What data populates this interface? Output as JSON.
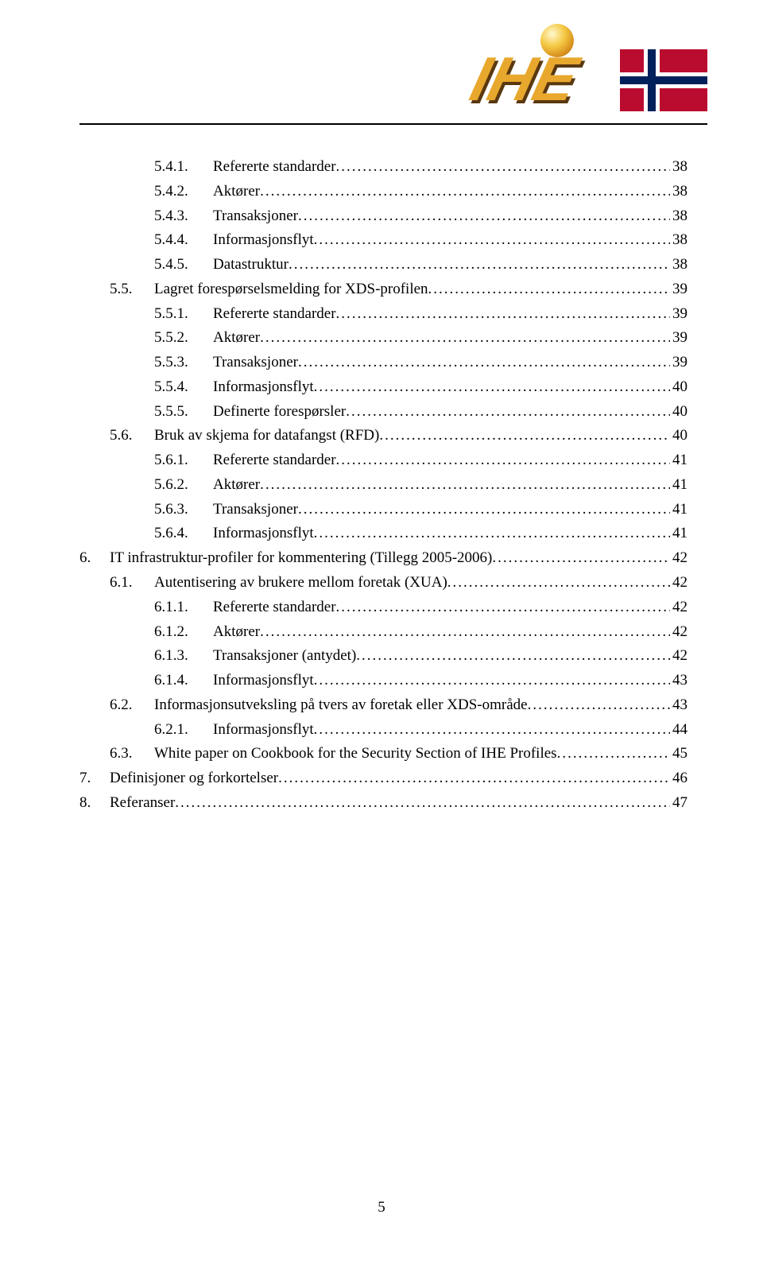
{
  "logo": {
    "text": "IHE",
    "text_color": "#e8a82e",
    "shadow_color": "#5a3810"
  },
  "toc": [
    {
      "level": 2,
      "num": "5.4.1.",
      "title": "Refererte standarder",
      "page": "38"
    },
    {
      "level": 2,
      "num": "5.4.2.",
      "title": "Aktører",
      "page": "38"
    },
    {
      "level": 2,
      "num": "5.4.3.",
      "title": "Transaksjoner",
      "page": "38"
    },
    {
      "level": 2,
      "num": "5.4.4.",
      "title": "Informasjonsflyt",
      "page": "38"
    },
    {
      "level": 2,
      "num": "5.4.5.",
      "title": "Datastruktur",
      "page": "38"
    },
    {
      "level": 1,
      "num": "5.5.",
      "title": "Lagret forespørselsmelding for XDS-profilen",
      "page": "39"
    },
    {
      "level": 2,
      "num": "5.5.1.",
      "title": "Refererte standarder",
      "page": "39"
    },
    {
      "level": 2,
      "num": "5.5.2.",
      "title": "Aktører",
      "page": "39"
    },
    {
      "level": 2,
      "num": "5.5.3.",
      "title": "Transaksjoner",
      "page": "39"
    },
    {
      "level": 2,
      "num": "5.5.4.",
      "title": "Informasjonsflyt",
      "page": "40"
    },
    {
      "level": 2,
      "num": "5.5.5.",
      "title": "Definerte forespørsler",
      "page": "40"
    },
    {
      "level": 1,
      "num": "5.6.",
      "title": "Bruk av skjema for datafangst (RFD)",
      "page": "40"
    },
    {
      "level": 2,
      "num": "5.6.1.",
      "title": "Refererte standarder",
      "page": "41"
    },
    {
      "level": 2,
      "num": "5.6.2.",
      "title": "Aktører",
      "page": "41"
    },
    {
      "level": 2,
      "num": "5.6.3.",
      "title": "Transaksjoner",
      "page": "41"
    },
    {
      "level": 2,
      "num": "5.6.4.",
      "title": "Informasjonsflyt",
      "page": "41"
    },
    {
      "level": 0,
      "num": "6.",
      "title": "IT infrastruktur-profiler for kommentering (Tillegg 2005-2006)",
      "page": "42"
    },
    {
      "level": 1,
      "num": "6.1.",
      "title": "Autentisering av brukere mellom foretak (XUA)",
      "page": "42"
    },
    {
      "level": 2,
      "num": "6.1.1.",
      "title": "Refererte standarder",
      "page": "42"
    },
    {
      "level": 2,
      "num": "6.1.2.",
      "title": "Aktører",
      "page": "42"
    },
    {
      "level": 2,
      "num": "6.1.3.",
      "title": "Transaksjoner (antydet)",
      "page": "42"
    },
    {
      "level": 2,
      "num": "6.1.4.",
      "title": "Informasjonsflyt",
      "page": "43"
    },
    {
      "level": 1,
      "num": "6.2.",
      "title": "Informasjonsutveksling på tvers av foretak eller XDS-område",
      "page": "43"
    },
    {
      "level": 2,
      "num": "6.2.1.",
      "title": "Informasjonsflyt",
      "page": "44"
    },
    {
      "level": 1,
      "num": "6.3.",
      "title": "White paper on Cookbook for the Security Section of IHE Profiles",
      "page": "45"
    },
    {
      "level": 0,
      "num": "7.",
      "title": "Definisjoner og forkortelser",
      "page": "46"
    },
    {
      "level": 0,
      "num": "8.",
      "title": "Referanser",
      "page": "47"
    }
  ],
  "page_number": "5"
}
